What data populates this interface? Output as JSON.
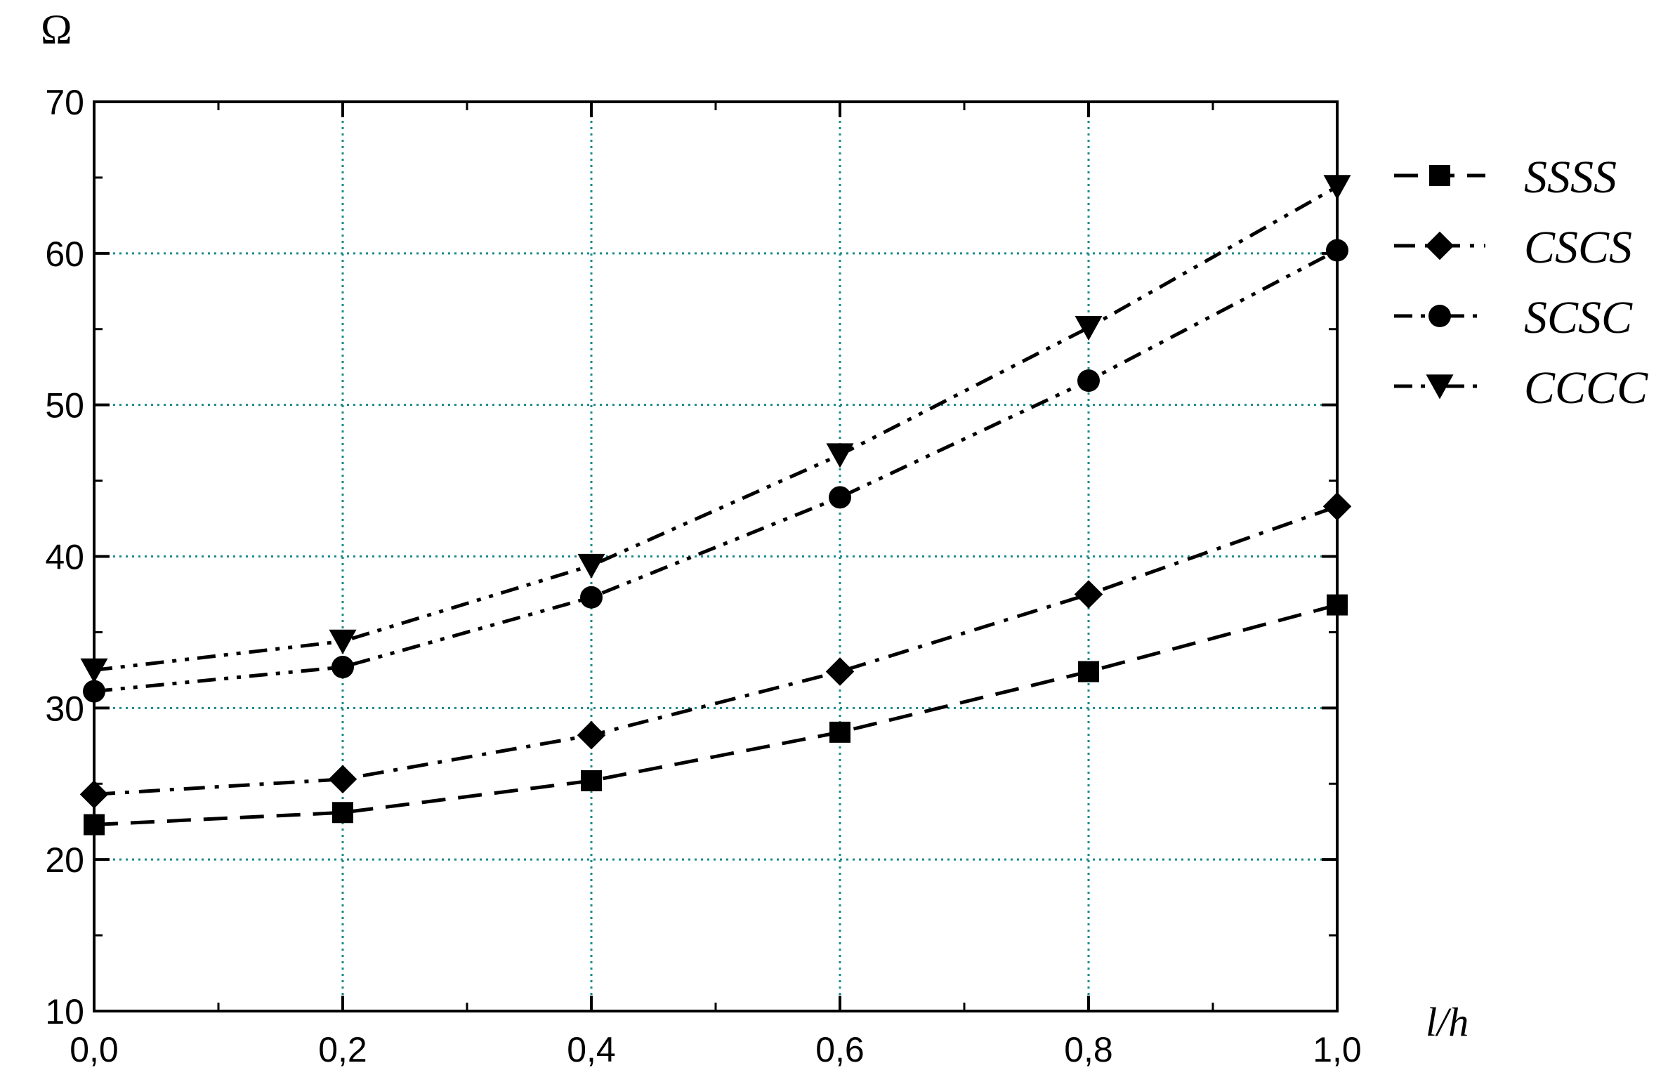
{
  "chart_data": {
    "type": "line",
    "title": "",
    "xlabel": "l/h",
    "ylabel": "Ω",
    "x": [
      0.0,
      0.2,
      0.4,
      0.6,
      0.8,
      1.0
    ],
    "x_tick_labels": [
      "0,0",
      "0,2",
      "0,4",
      "0,6",
      "0,8",
      "1,0"
    ],
    "y_tick_labels": [
      "10",
      "20",
      "30",
      "40",
      "50",
      "60",
      "70"
    ],
    "xlim": [
      0,
      1
    ],
    "ylim": [
      10,
      70
    ],
    "grid": true,
    "grid_color": "#1a8a8a",
    "legend_position": "right",
    "series": [
      {
        "name": "SSSS",
        "marker": "square",
        "dash": "dash",
        "values": [
          22.3,
          23.1,
          25.2,
          28.4,
          32.4,
          36.8
        ]
      },
      {
        "name": "CSCS",
        "marker": "diamond",
        "dash": "dash-dot",
        "values": [
          24.3,
          25.3,
          28.2,
          32.4,
          37.5,
          43.3
        ]
      },
      {
        "name": "SCSC",
        "marker": "circle",
        "dash": "dash-dot-dot",
        "values": [
          31.1,
          32.7,
          37.3,
          43.9,
          51.6,
          60.2
        ]
      },
      {
        "name": "CCCC",
        "marker": "triangle-down",
        "dash": "dash-dot-dot",
        "values": [
          32.5,
          34.4,
          39.4,
          46.7,
          55.1,
          64.4
        ]
      }
    ]
  }
}
